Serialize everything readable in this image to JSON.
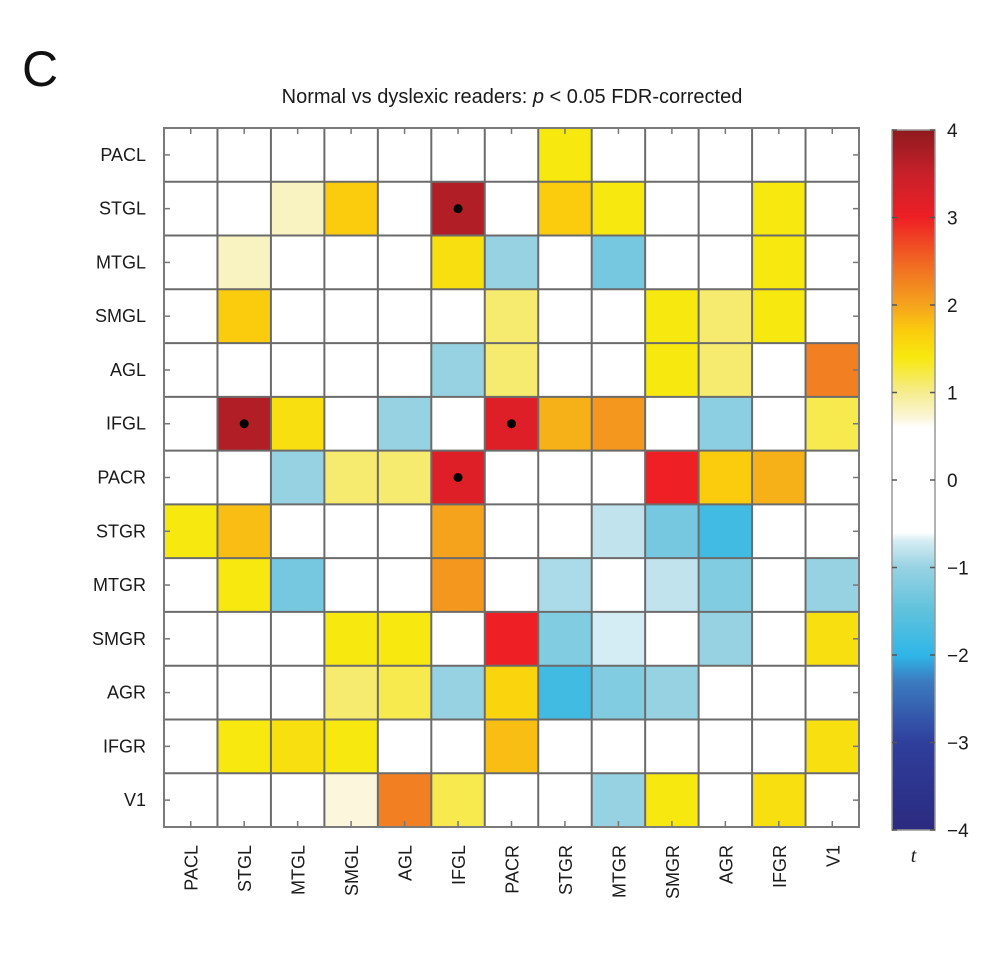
{
  "panel_letter": "C",
  "chart_data": {
    "type": "heatmap",
    "title_prefix": "Normal vs dyslexic readers: ",
    "title_italic": "p",
    "title_suffix": " < 0.05 FDR-corrected",
    "xlabel": "",
    "ylabel": "",
    "row_labels": [
      "PACL",
      "STGL",
      "MTGL",
      "SMGL",
      "AGL",
      "IFGL",
      "PACR",
      "STGR",
      "MTGR",
      "SMGR",
      "AGR",
      "IFGR",
      "V1"
    ],
    "col_labels": [
      "PACL",
      "STGL",
      "MTGL",
      "SMGL",
      "AGL",
      "IFGL",
      "PACR",
      "STGR",
      "MTGR",
      "SMGR",
      "AGR",
      "IFGR",
      "V1"
    ],
    "values": [
      [
        0,
        0,
        0,
        0.6,
        0,
        0,
        0,
        1.4,
        -0.6,
        0,
        0,
        0,
        0
      ],
      [
        0,
        0,
        0.8,
        1.7,
        0,
        3.7,
        0,
        1.7,
        1.4,
        0.6,
        0,
        1.4,
        -0.6
      ],
      [
        0,
        0.8,
        0,
        0,
        0,
        1.5,
        -1.0,
        0,
        -1.3,
        0,
        -0.6,
        1.4,
        0
      ],
      [
        0.6,
        1.7,
        0,
        0,
        0,
        0,
        1.1,
        0,
        0,
        1.4,
        1.1,
        1.4,
        0.6
      ],
      [
        0,
        0,
        0,
        0,
        0,
        -1.0,
        1.1,
        0,
        0,
        1.4,
        1.1,
        0,
        2.3
      ],
      [
        0,
        3.7,
        1.5,
        0,
        -1.0,
        0,
        3.2,
        1.9,
        2.1,
        0,
        -1.1,
        0,
        1.2
      ],
      [
        0,
        0,
        -1.0,
        1.1,
        1.1,
        3.2,
        0,
        0.6,
        0,
        3.0,
        1.7,
        1.9,
        0
      ],
      [
        1.4,
        1.8,
        0,
        0,
        0,
        2.0,
        0.6,
        0,
        -0.8,
        -1.3,
        -1.8,
        -0.6,
        0
      ],
      [
        -0.6,
        1.4,
        -1.3,
        0,
        0,
        2.1,
        0,
        -0.9,
        0,
        -0.8,
        -1.2,
        0,
        -1.0
      ],
      [
        0,
        0.6,
        0,
        1.4,
        1.4,
        0,
        3.0,
        -1.2,
        -0.7,
        0,
        -1.0,
        0,
        1.5
      ],
      [
        0,
        0,
        -0.6,
        1.1,
        1.2,
        -1.0,
        1.6,
        -1.8,
        -1.2,
        -1.0,
        0,
        0,
        0
      ],
      [
        0,
        1.4,
        1.5,
        1.4,
        0,
        0,
        1.8,
        -0.6,
        0,
        0,
        0,
        0,
        1.5
      ],
      [
        0,
        -0.6,
        0,
        0.7,
        2.3,
        1.2,
        0,
        0,
        -1.0,
        1.4,
        0,
        1.5,
        0
      ]
    ],
    "significant_cells": [
      {
        "row": "STGL",
        "col": "IFGL"
      },
      {
        "row": "IFGL",
        "col": "STGL"
      },
      {
        "row": "IFGL",
        "col": "PACR"
      },
      {
        "row": "PACR",
        "col": "IFGL"
      }
    ],
    "colorbar": {
      "label": "t",
      "range": [
        -4,
        4
      ],
      "ticks": [
        4,
        3,
        2,
        1,
        0,
        -1,
        -2,
        -3,
        -4
      ],
      "tick_labels": [
        "4",
        "3",
        "2",
        "1",
        "0",
        "−1",
        "−2",
        "−3",
        "−4"
      ],
      "white_band": [
        -0.6,
        0.6
      ],
      "color_stops": [
        {
          "t": -4.0,
          "color": "#2b2a7f"
        },
        {
          "t": -3.0,
          "color": "#2f3f9c"
        },
        {
          "t": -2.3,
          "color": "#3c7bc0"
        },
        {
          "t": -2.0,
          "color": "#2fb6e8"
        },
        {
          "t": -1.5,
          "color": "#5fc2dc"
        },
        {
          "t": -1.0,
          "color": "#97d2e3"
        },
        {
          "t": -0.7,
          "color": "#d4ecf3"
        },
        {
          "t": -0.6,
          "color": "#ffffff"
        },
        {
          "t": 0.6,
          "color": "#ffffff"
        },
        {
          "t": 0.7,
          "color": "#fbf6dc"
        },
        {
          "t": 1.0,
          "color": "#f6ec8e"
        },
        {
          "t": 1.4,
          "color": "#f7e80f"
        },
        {
          "t": 1.7,
          "color": "#fbcc0e"
        },
        {
          "t": 2.0,
          "color": "#f5a31d"
        },
        {
          "t": 2.4,
          "color": "#f17322"
        },
        {
          "t": 3.0,
          "color": "#ee1f25"
        },
        {
          "t": 3.5,
          "color": "#c8202a"
        },
        {
          "t": 4.0,
          "color": "#8e1a1e"
        }
      ]
    },
    "grid": true,
    "legend": "right"
  }
}
